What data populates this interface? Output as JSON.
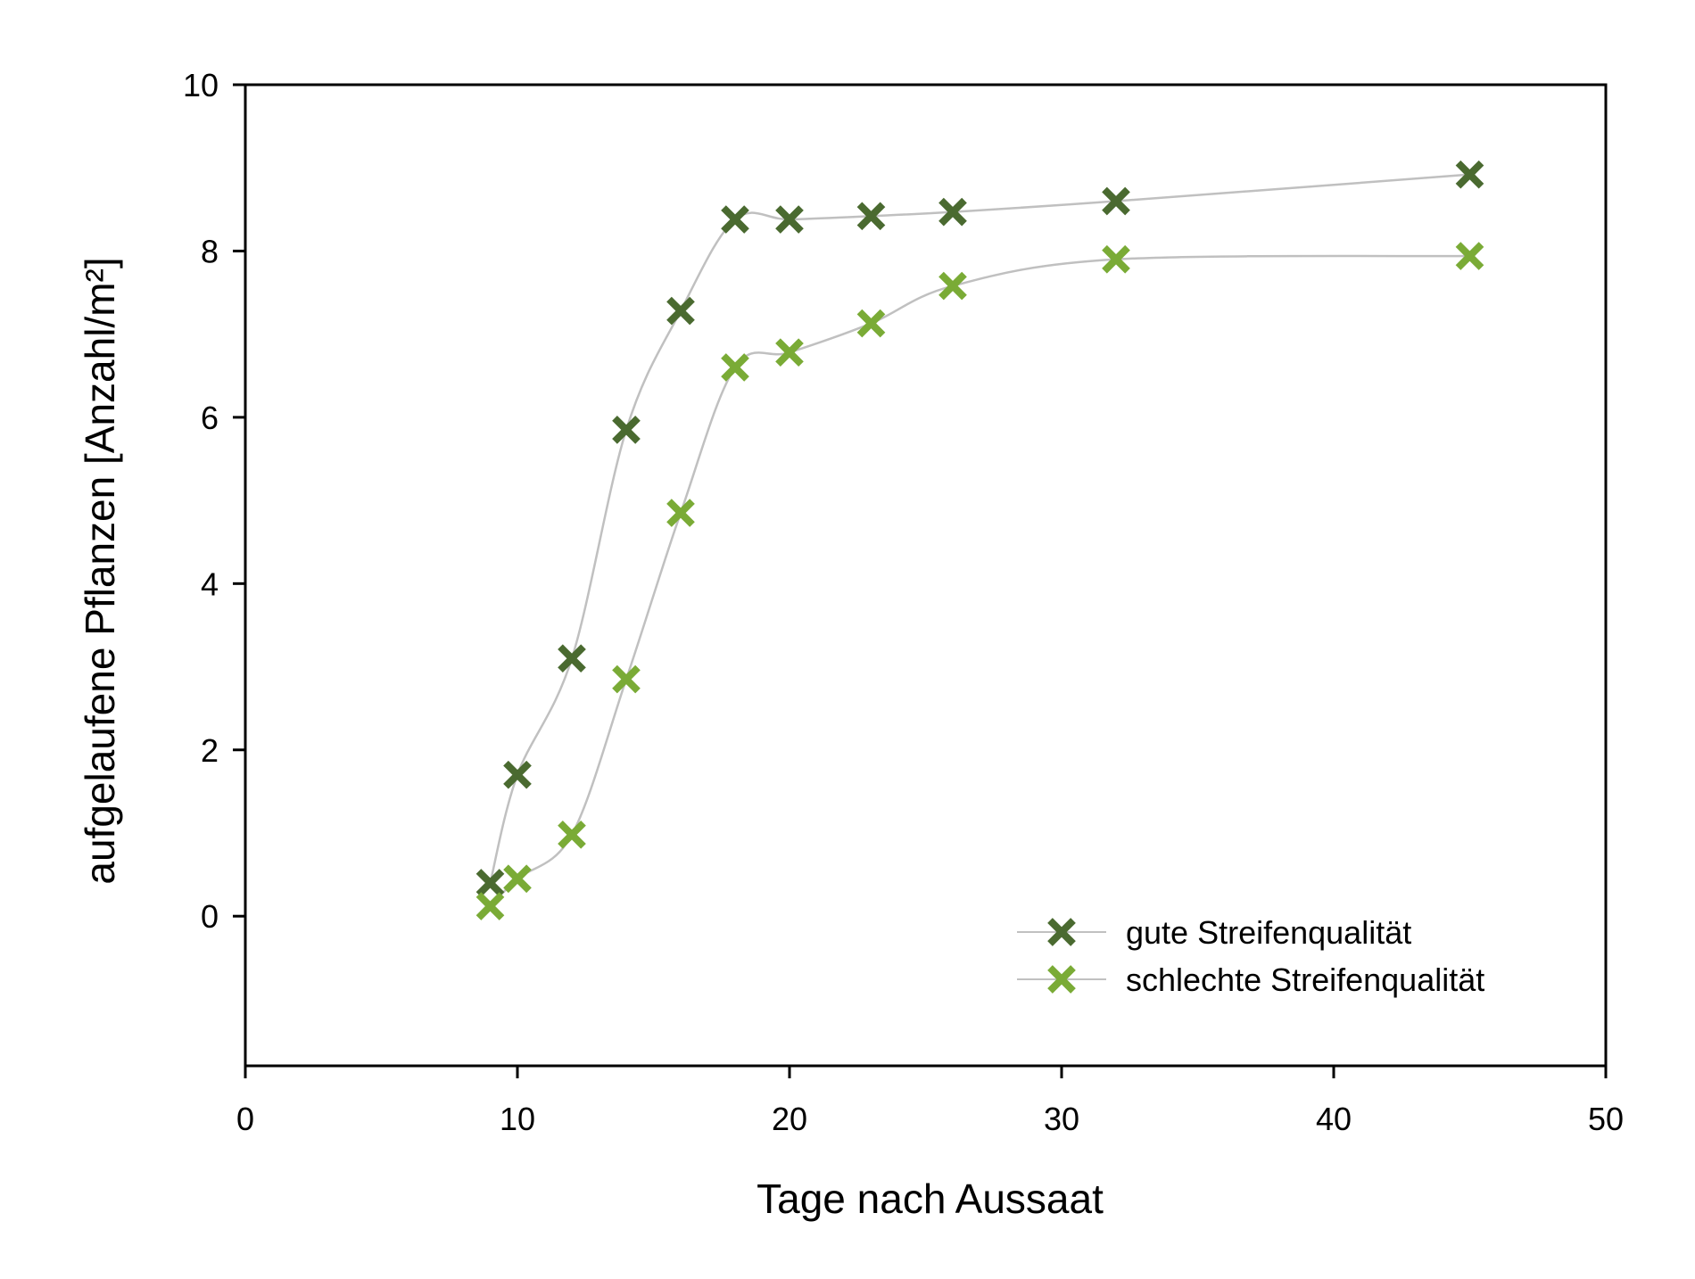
{
  "chart_data": {
    "type": "scatter",
    "title": "",
    "xlabel": "Tage nach Aussaat",
    "ylabel": "aufgelaufene Pflanzen [Anzahl/m²]",
    "xlim": [
      0,
      50
    ],
    "ylim": [
      -1.8,
      10
    ],
    "xticks": [
      "0",
      "10",
      "20",
      "30",
      "40",
      "50"
    ],
    "yticks": [
      "0",
      "2",
      "4",
      "6",
      "8",
      "10"
    ],
    "grid": false,
    "legend_position": "bottom-right",
    "series": [
      {
        "name": "gute Streifenqualität",
        "color": "#4a6a30",
        "marker": "x",
        "x": [
          9,
          10,
          12,
          14,
          16,
          18,
          20,
          23,
          26,
          32,
          45
        ],
        "y": [
          0.4,
          1.7,
          3.1,
          5.85,
          7.28,
          8.38,
          8.38,
          8.42,
          8.47,
          8.6,
          8.92
        ]
      },
      {
        "name": "schlechte Streifenqualität",
        "color": "#7aab36",
        "marker": "x",
        "x": [
          9,
          10,
          12,
          14,
          16,
          18,
          20,
          23,
          26,
          32,
          45
        ],
        "y": [
          0.12,
          0.45,
          0.98,
          2.85,
          4.85,
          6.6,
          6.78,
          7.13,
          7.58,
          7.9,
          7.94
        ]
      }
    ],
    "line_color": "#c0c0c0"
  }
}
